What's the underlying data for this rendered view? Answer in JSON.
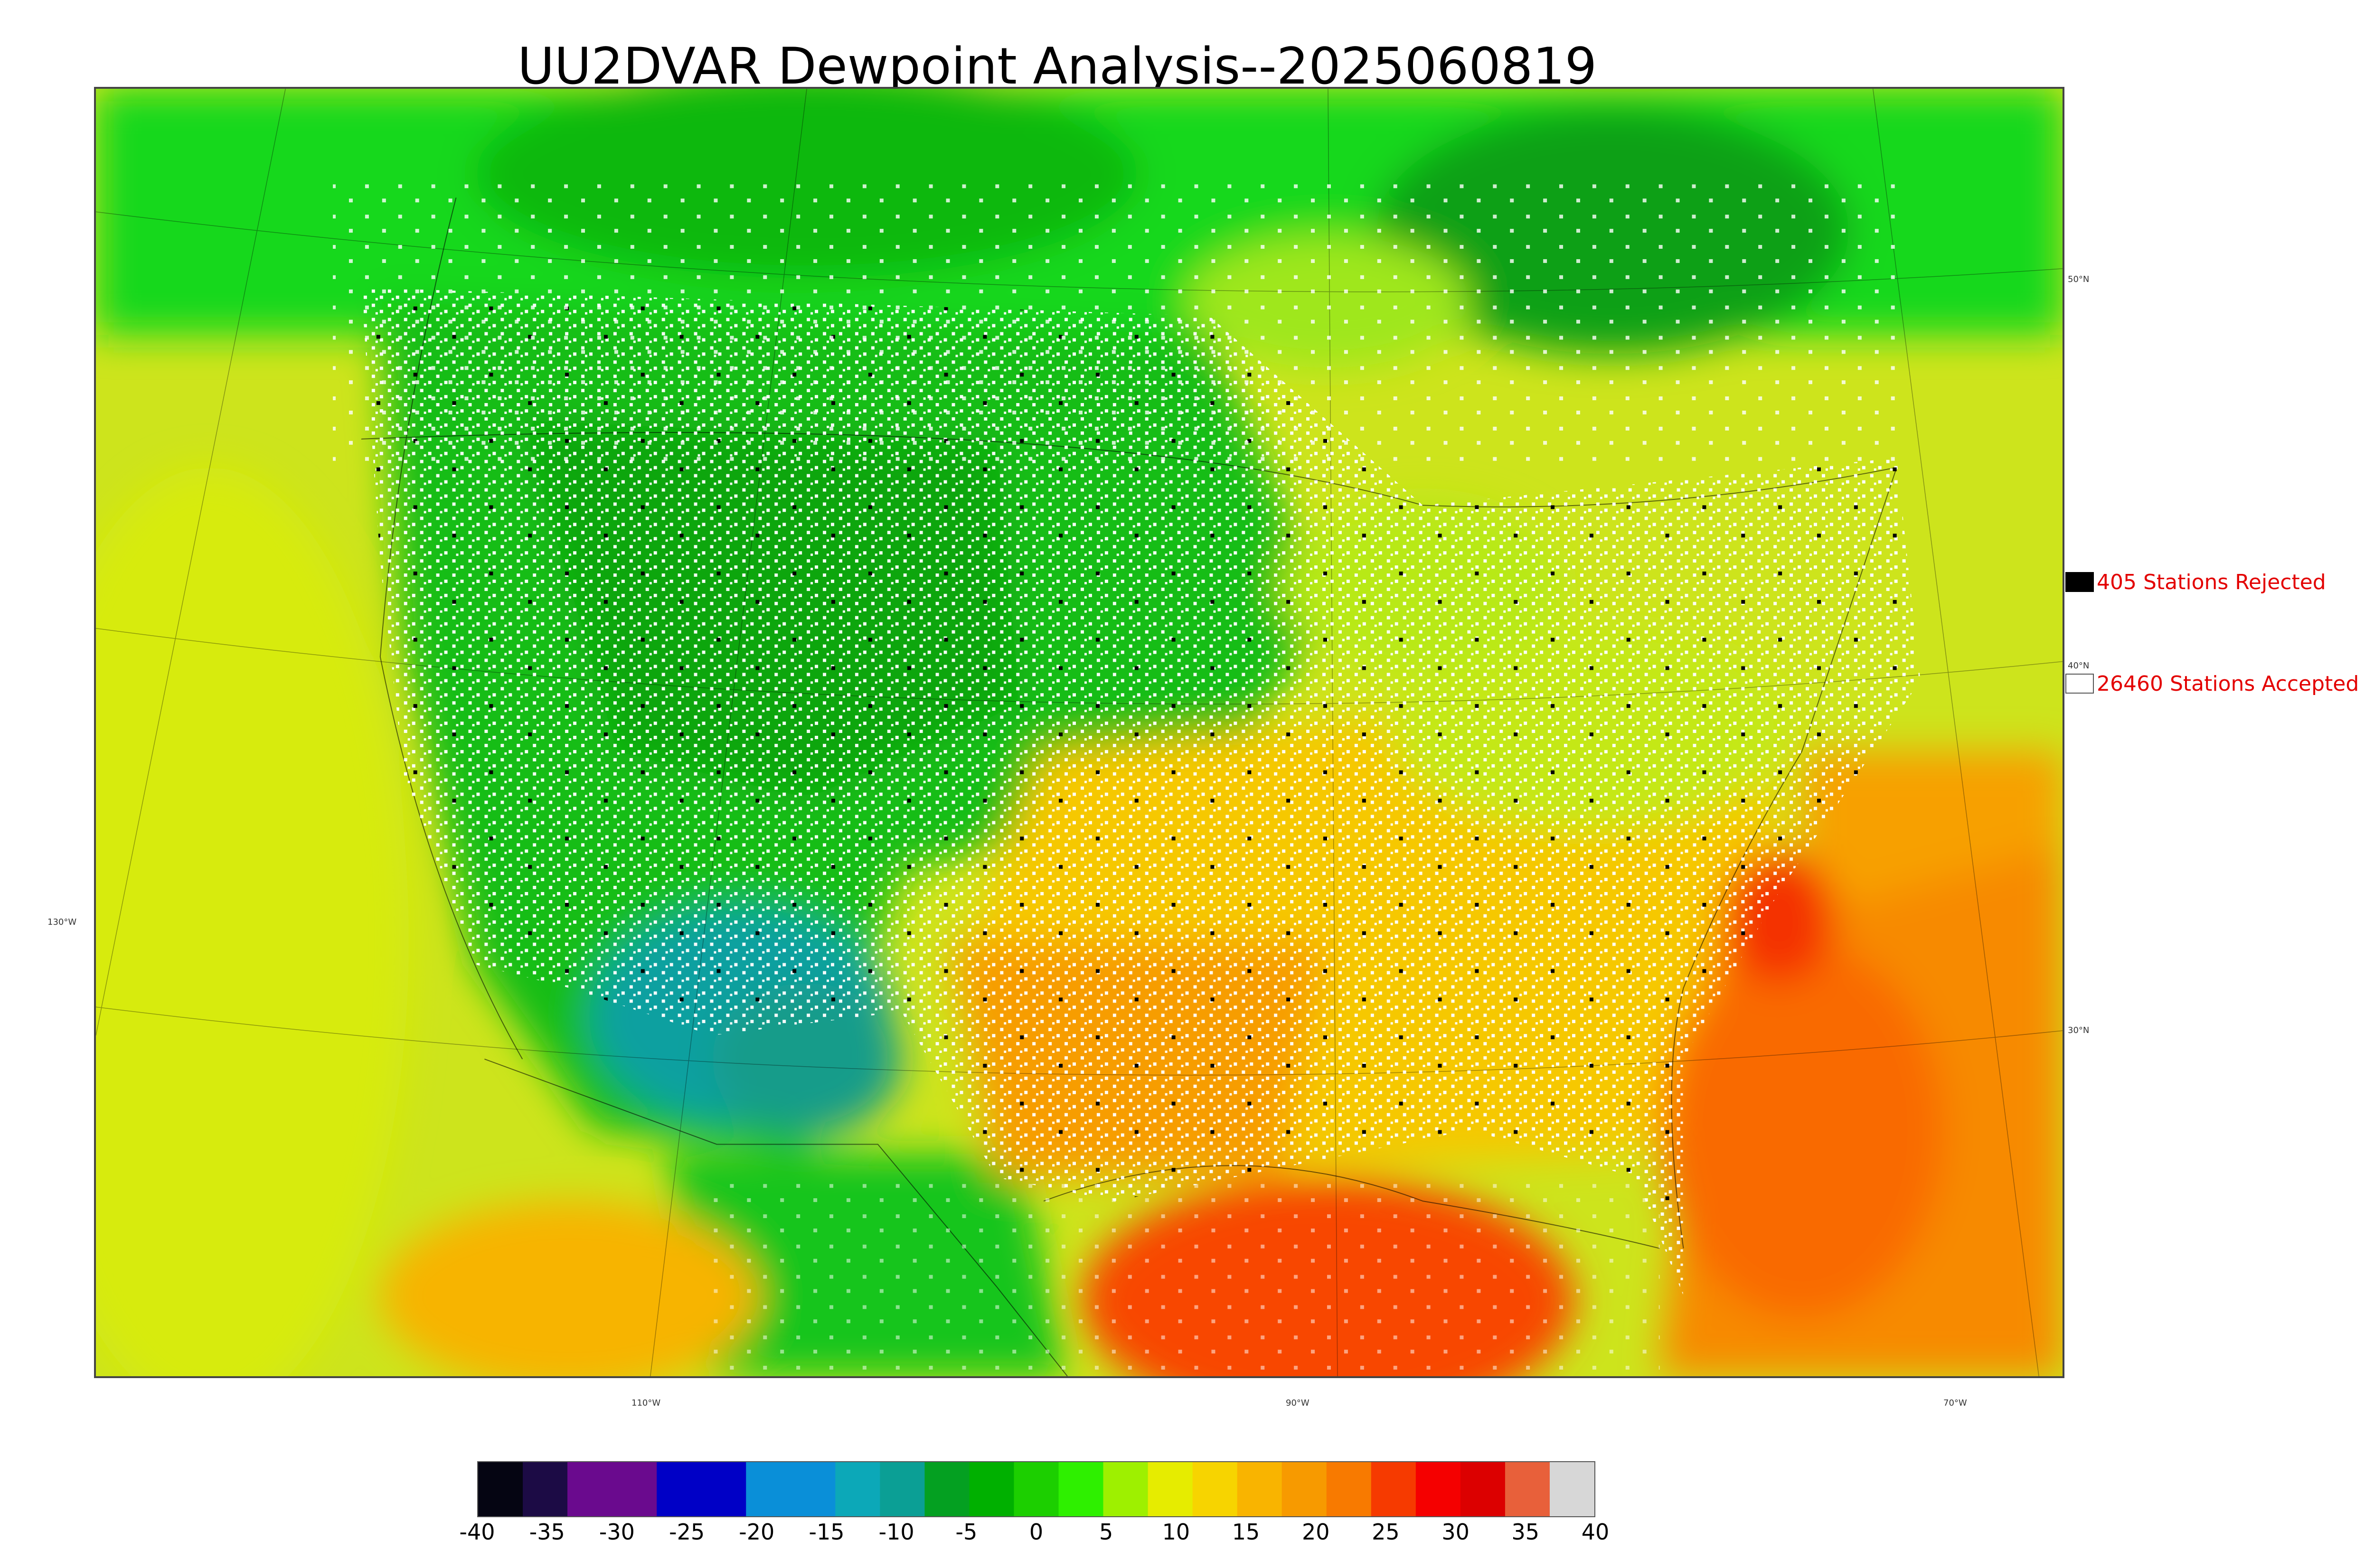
{
  "title": "UU2DVAR Dewpoint Analysis--2025060819",
  "map": {
    "lat_labels": [
      "50°N",
      "40°N",
      "30°N"
    ],
    "lon_labels": [
      "130°W",
      "110°W",
      "90°W",
      "70°W"
    ]
  },
  "legend": {
    "rejected": {
      "label": "405 Stations Rejected",
      "color": "#000000"
    },
    "accepted": {
      "label": "26460 Stations Accepted",
      "color": "#ffffff"
    }
  },
  "colorbar": {
    "ticks": [
      "-40",
      "-35",
      "-30",
      "-25",
      "-20",
      "-15",
      "-10",
      "-5",
      "0",
      "5",
      "10",
      "15",
      "20",
      "25",
      "30",
      "35",
      "40"
    ],
    "colors": [
      "#050512",
      "#1c0b45",
      "#6a0a8e",
      "#6a0a8e",
      "#0000c6",
      "#0000c6",
      "#0a8fd8",
      "#0a8fd8",
      "#0ca8b8",
      "#0b9f95",
      "#04a021",
      "#00b000",
      "#1ccf00",
      "#2ef000",
      "#9ef000",
      "#e6ec00",
      "#f7d400",
      "#f9b400",
      "#f79a00",
      "#f87a00",
      "#f63a00",
      "#f50000",
      "#dc0000",
      "#e8603a",
      "#d7d7d7"
    ]
  },
  "legend_text_color": "#e30000"
}
